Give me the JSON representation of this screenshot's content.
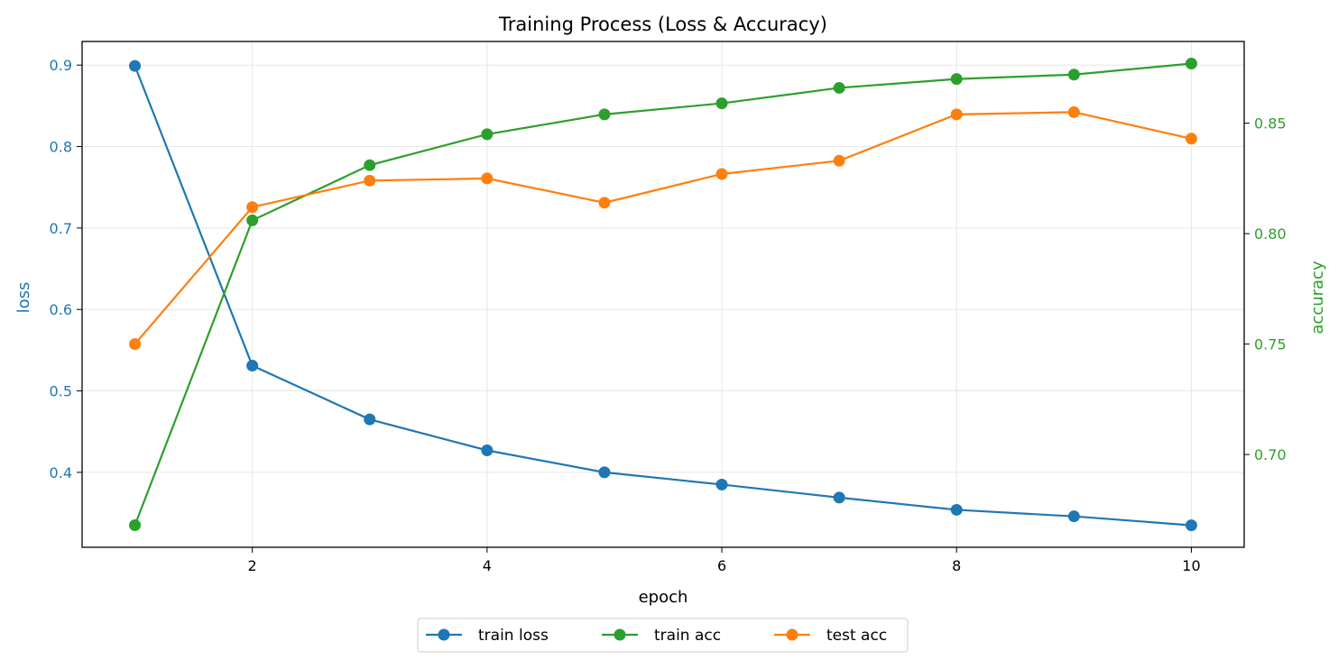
{
  "chart_data": {
    "type": "line",
    "title": "Training Process (Loss & Accuracy)",
    "xlabel": "epoch",
    "ylabel_left": "loss",
    "ylabel_right": "accuracy",
    "x": [
      1,
      2,
      3,
      4,
      5,
      6,
      7,
      8,
      9,
      10
    ],
    "xlim": [
      0.55,
      10.45
    ],
    "xticks": [
      2,
      4,
      6,
      8,
      10
    ],
    "ylim_left": [
      0.308,
      0.929
    ],
    "yticks_left": [
      0.4,
      0.5,
      0.6,
      0.7,
      0.8,
      0.9
    ],
    "ylim_right": [
      0.658,
      0.887
    ],
    "yticks_right": [
      0.7,
      0.75,
      0.8,
      0.85
    ],
    "grid": true,
    "legend_placement": "bottom-center",
    "colors": {
      "left_axis": "#1f77b4",
      "right_axis": "#2ca02c"
    },
    "series": [
      {
        "name": "train loss",
        "axis": "left",
        "color": "#1f77b4",
        "values": [
          0.899,
          0.531,
          0.465,
          0.427,
          0.4,
          0.385,
          0.369,
          0.354,
          0.346,
          0.335
        ]
      },
      {
        "name": "train acc",
        "axis": "right",
        "color": "#2ca02c",
        "values": [
          0.668,
          0.806,
          0.831,
          0.845,
          0.854,
          0.859,
          0.866,
          0.87,
          0.872,
          0.877
        ]
      },
      {
        "name": "test acc",
        "axis": "right",
        "color": "#ff7f0e",
        "values": [
          0.75,
          0.812,
          0.824,
          0.825,
          0.814,
          0.827,
          0.833,
          0.854,
          0.855,
          0.843
        ]
      }
    ]
  }
}
